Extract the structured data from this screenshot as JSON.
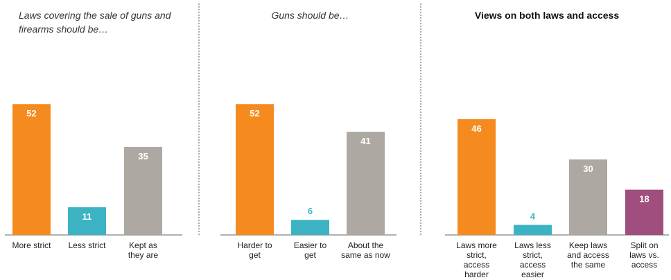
{
  "chart_data": [
    {
      "type": "bar",
      "title": "Laws covering the sale of guns and firearms should be…",
      "categories": [
        "More strict",
        "Less strict",
        "Kept as they are"
      ],
      "values": [
        52,
        11,
        35
      ],
      "colors": [
        "#F58A1F",
        "#3BB3C3",
        "#ADA8A2"
      ],
      "ylim": [
        0,
        60
      ],
      "grid": false
    },
    {
      "type": "bar",
      "title": "Guns should be…",
      "categories": [
        "Harder to get",
        "Easier to get",
        "About the same as now"
      ],
      "values": [
        52,
        6,
        41
      ],
      "colors": [
        "#F58A1F",
        "#3BB3C3",
        "#ADA8A2"
      ],
      "ylim": [
        0,
        60
      ],
      "grid": false
    },
    {
      "type": "bar",
      "title": "Views on both laws and access",
      "categories": [
        "Laws more strict, access harder",
        "Laws less strict, access easier",
        "Keep laws and access the same",
        "Split on laws vs. access"
      ],
      "values": [
        46,
        4,
        30,
        18
      ],
      "colors": [
        "#F58A1F",
        "#3BB3C3",
        "#ADA8A2",
        "#A04E7D"
      ],
      "ylim": [
        0,
        60
      ],
      "grid": false
    }
  ]
}
